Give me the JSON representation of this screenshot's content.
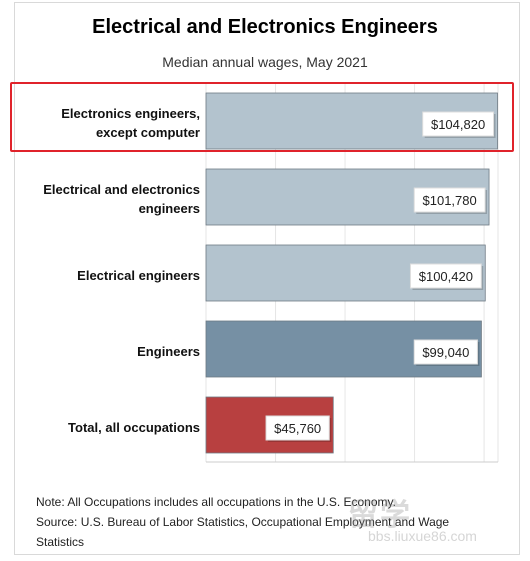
{
  "chart_data": {
    "type": "bar",
    "orientation": "horizontal",
    "title": "Electrical and Electronics Engineers",
    "subtitle": "Median annual wages, May 2021",
    "categories": [
      [
        "Electronics engineers,",
        "except computer"
      ],
      [
        "Electrical and electronics",
        "engineers"
      ],
      [
        "Electrical engineers"
      ],
      [
        "Engineers"
      ],
      [
        "Total, all occupations"
      ]
    ],
    "values": [
      104820,
      101780,
      100420,
      99040,
      45760
    ],
    "value_labels": [
      "$104,820",
      "$101,780",
      "$100,420",
      "$99,040",
      "$45,760"
    ],
    "bar_colors": [
      "#b3c3ce",
      "#b3c3ce",
      "#b3c3ce",
      "#7690a4",
      "#b84040"
    ],
    "xlim": [
      0,
      105000
    ],
    "grid": true,
    "highlighted_category_index": 0
  },
  "notes": [
    "Note: All Occupations includes all occupations in the U.S. Economy.",
    "Source: U.S. Bureau of Labor Statistics, Occupational Employment and Wage",
    "Statistics"
  ],
  "watermark": {
    "main": "留学",
    "sub": "bbs.liuxue86.com"
  },
  "colors": {
    "highlight": "#e0232b",
    "grid": "#e6e6e6"
  }
}
